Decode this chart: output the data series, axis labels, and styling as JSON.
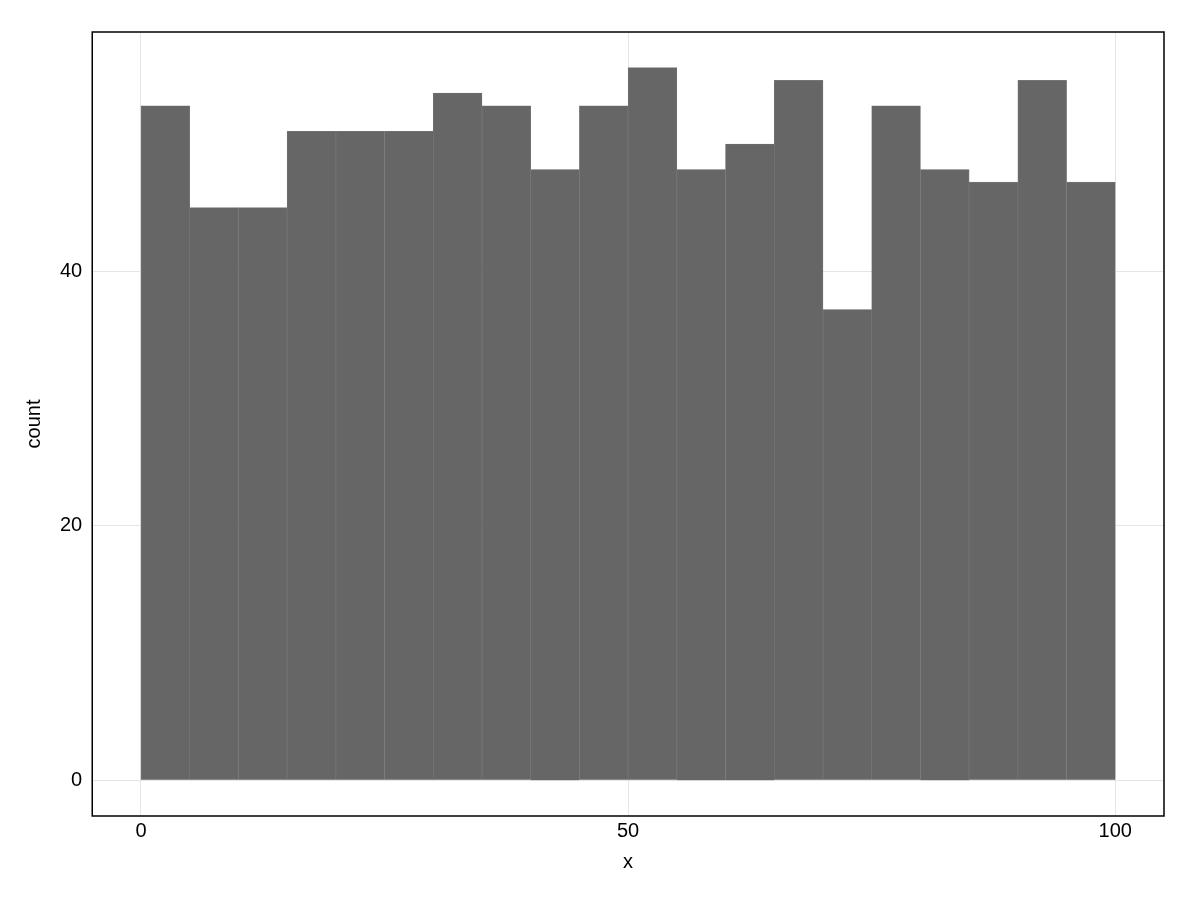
{
  "chart_data": {
    "type": "histogram",
    "xlabel": "x",
    "ylabel": "count",
    "bins": [
      0,
      5,
      10,
      15,
      20,
      25,
      30,
      35,
      40,
      45,
      50,
      55,
      60,
      65,
      70,
      75,
      80,
      85,
      90,
      95,
      100
    ],
    "values": [
      53,
      45,
      45,
      51,
      51,
      51,
      54,
      53,
      48,
      53,
      56,
      48,
      50,
      55,
      37,
      53,
      48,
      47,
      55,
      47
    ],
    "color": "#666666",
    "xlim": [
      -5,
      105
    ],
    "ylim": [
      -2.8,
      58.8
    ],
    "xticks": [
      0,
      50,
      100
    ],
    "yticks": [
      0,
      20,
      40
    ],
    "grid": true
  }
}
